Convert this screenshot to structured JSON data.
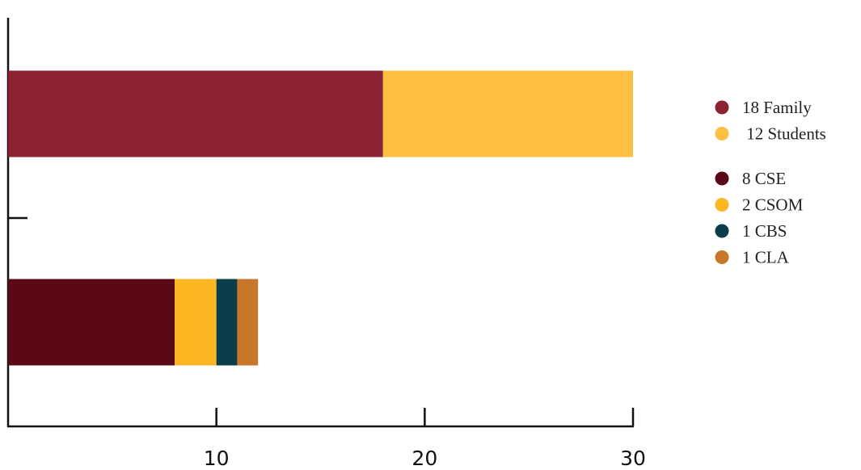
{
  "chart_data": {
    "type": "stacked_barh",
    "categories": [
      null,
      null
    ],
    "series": [
      {
        "name": "18 Family",
        "color": "#8b2332",
        "values": [
          18,
          null
        ]
      },
      {
        "name": " 12 Students",
        "color": "#fdbf42",
        "values": [
          12,
          null
        ]
      },
      {
        "name": "8 CSE",
        "color": "#5a0a17",
        "values": [
          null,
          8
        ]
      },
      {
        "name": "2 CSOM",
        "color": "#fbb622",
        "values": [
          null,
          2
        ]
      },
      {
        "name": "1 CBS",
        "color": "#0b3d4a",
        "values": [
          null,
          1
        ]
      },
      {
        "name": "1 CLA",
        "color": "#c8772a",
        "values": [
          null,
          1
        ]
      }
    ],
    "xlim": [
      0,
      30
    ],
    "xticks": [
      10,
      20,
      30
    ],
    "legend": "right"
  }
}
